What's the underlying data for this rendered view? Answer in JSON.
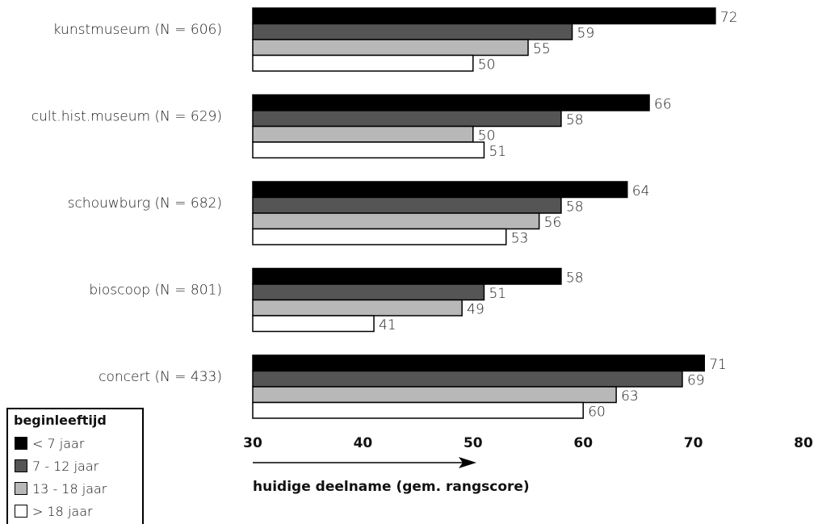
{
  "chart_data": {
    "type": "bar",
    "orientation": "horizontal",
    "categories": [
      "kunstmuseum (N = 606)",
      "cult.hist.museum (N = 629)",
      "schouwburg (N = 682)",
      "bioscoop (N = 801)",
      "concert (N = 433)"
    ],
    "series": [
      {
        "name": "< 7 jaar",
        "color": "#000000",
        "values": [
          72,
          66,
          64,
          58,
          71
        ]
      },
      {
        "name": "7 - 12 jaar",
        "color": "#555555",
        "values": [
          59,
          58,
          58,
          51,
          69
        ]
      },
      {
        "name": "13 - 18 jaar",
        "color": "#b8b8b8",
        "values": [
          55,
          50,
          56,
          49,
          63
        ]
      },
      {
        "name": "> 18 jaar",
        "color": "#ffffff",
        "values": [
          50,
          51,
          53,
          41,
          60
        ]
      }
    ],
    "xlim": [
      30,
      80
    ],
    "xticks": [
      "30",
      "40",
      "50",
      "60",
      "70",
      "80"
    ],
    "xlabel": "huidige deelname  (gem. rangscore)",
    "grid": false,
    "legend_title": "beginleeftijd",
    "legend_position": "bottom-left"
  }
}
